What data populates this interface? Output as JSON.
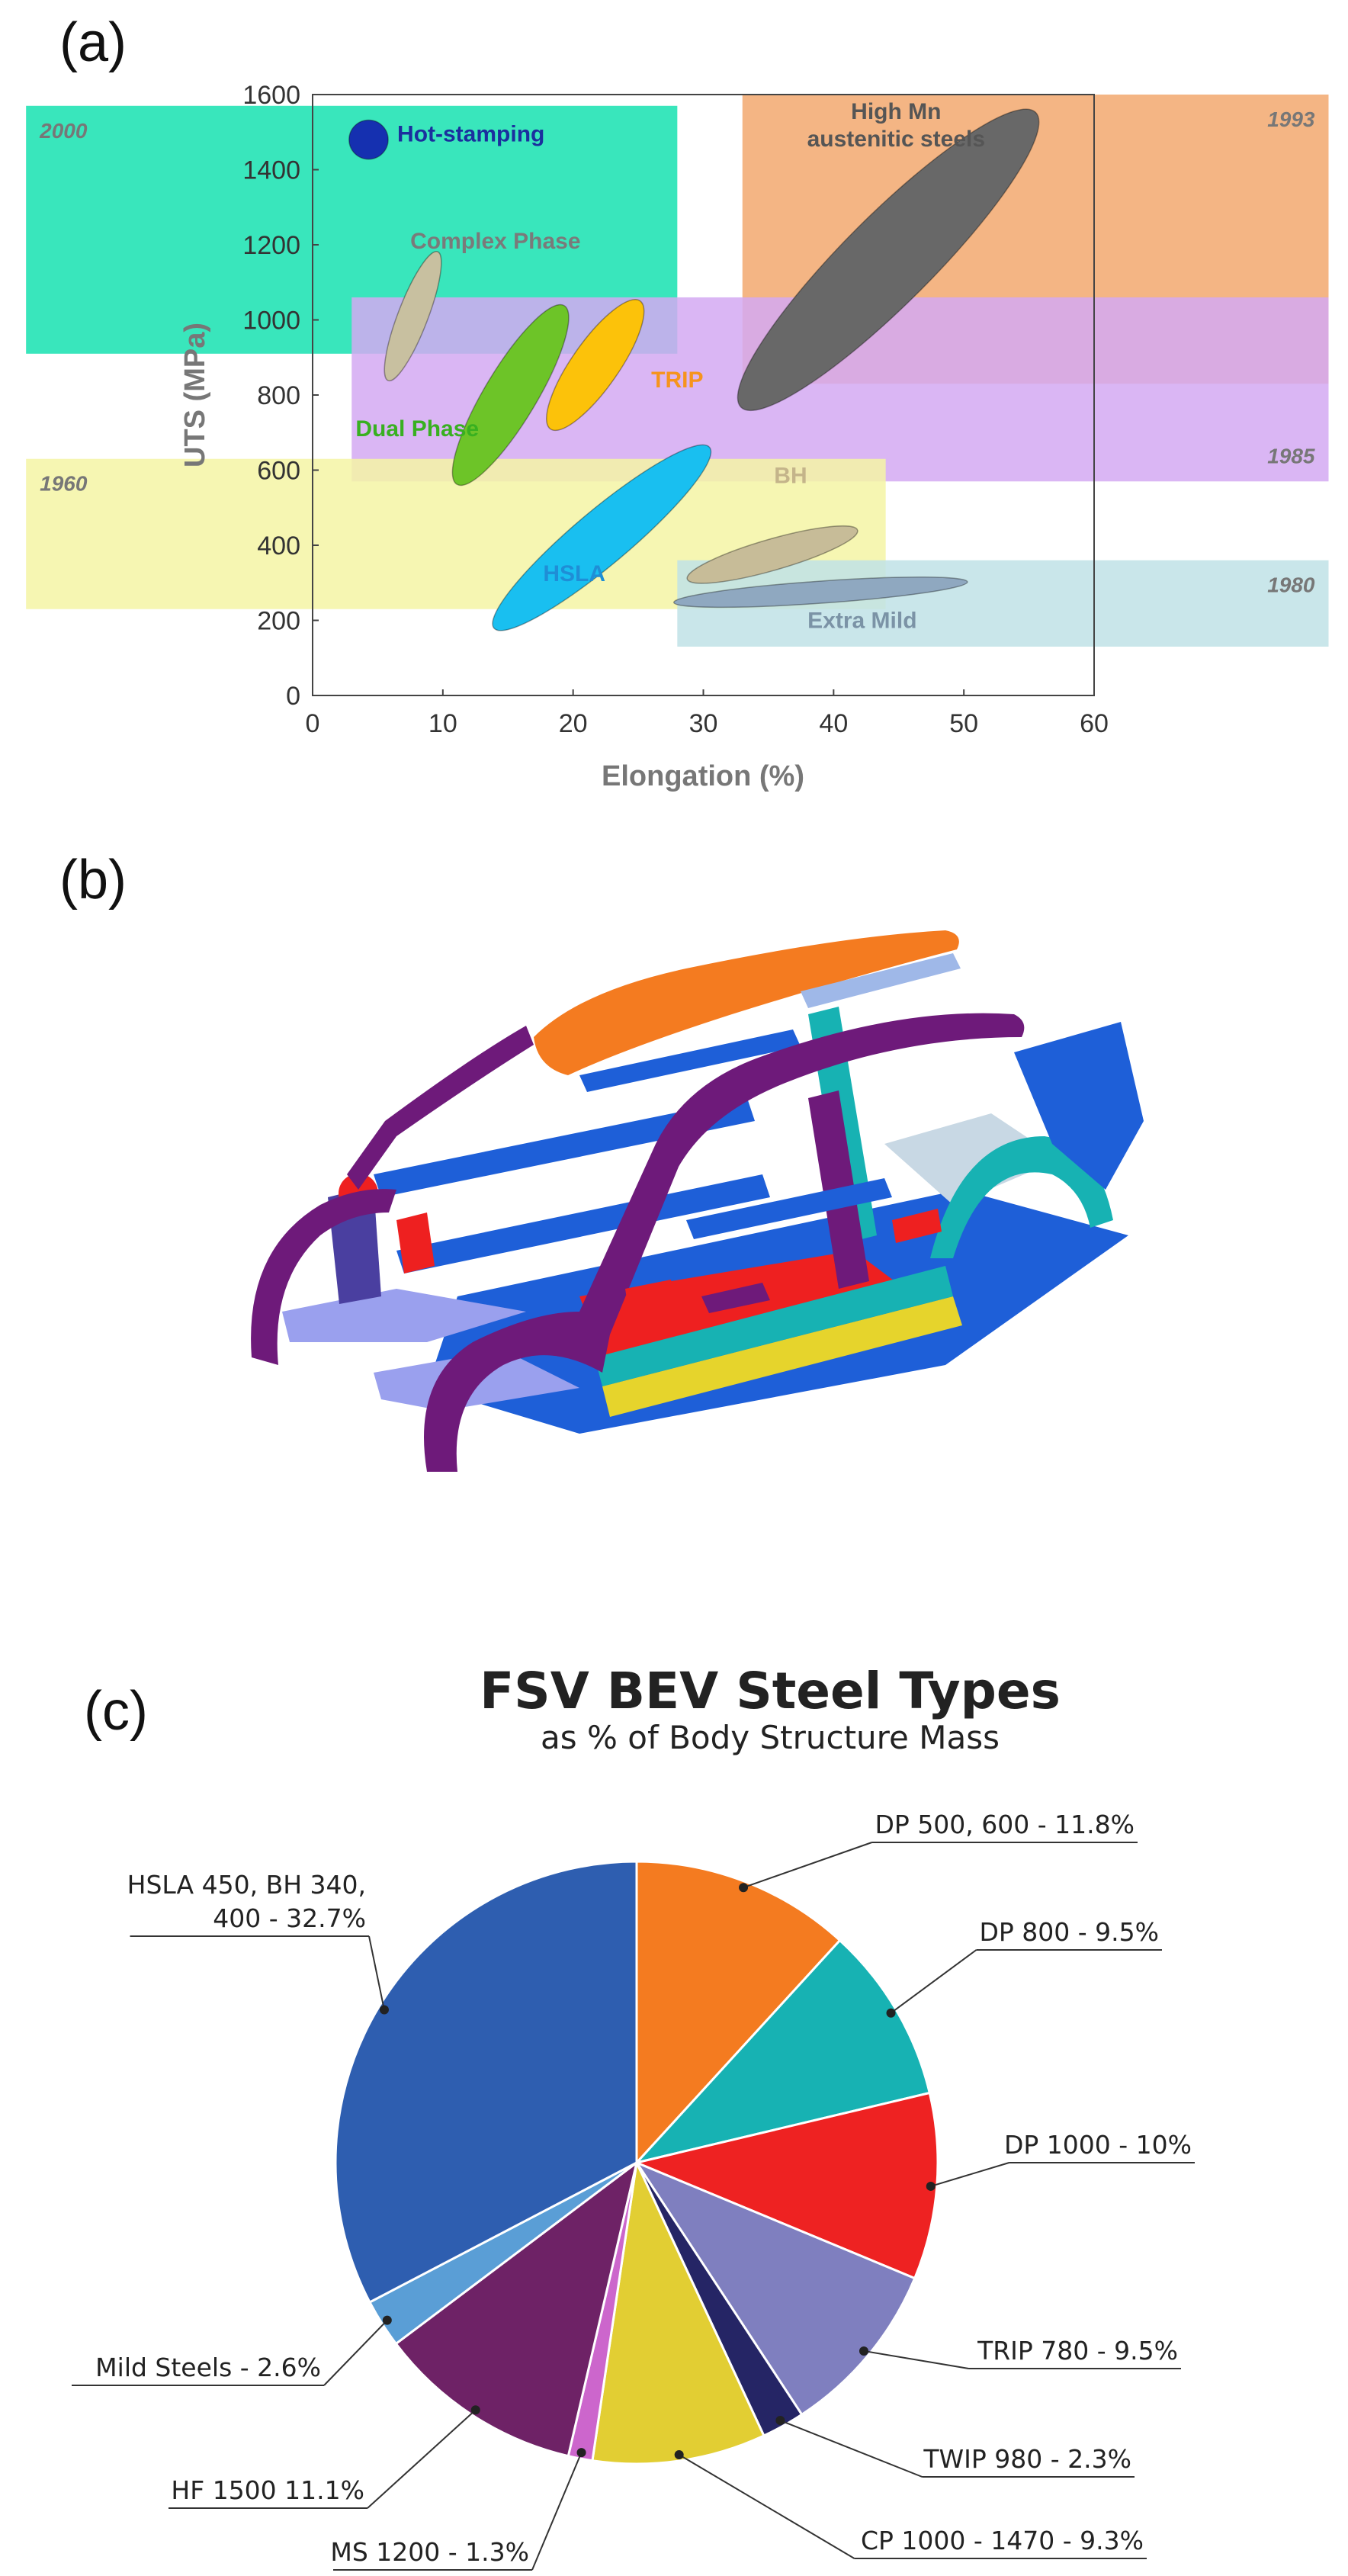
{
  "panels": {
    "a": "(a)",
    "b": "(b)",
    "c": "(c)"
  },
  "chart_data": [
    {
      "type": "scatter",
      "xlabel": "Elongation (%)",
      "ylabel": "UTS (MPa)",
      "xlim": [
        0,
        60
      ],
      "ylim": [
        0,
        1600
      ],
      "x_ticks": [
        "0",
        "10",
        "20",
        "30",
        "40",
        "50",
        "60"
      ],
      "y_ticks": [
        "0",
        "200",
        "400",
        "600",
        "800",
        "1000",
        "1200",
        "1400",
        "1600"
      ],
      "generations": [
        {
          "label": "2000",
          "color": "#16e2b0",
          "x": [
            -22,
            28
          ],
          "y": [
            910,
            1570
          ]
        },
        {
          "label": "1993",
          "color": "#f2a86e",
          "x": [
            33,
            78
          ],
          "y": [
            830,
            1600
          ]
        },
        {
          "label": "1985",
          "color": "#d4a9f2",
          "x": [
            3,
            78
          ],
          "y": [
            570,
            1060
          ]
        },
        {
          "label": "1960",
          "color": "#f4f4a4",
          "x": [
            -22,
            44
          ],
          "y": [
            230,
            630
          ]
        },
        {
          "label": "1980",
          "color": "#bfe2e6",
          "x": [
            28,
            78
          ],
          "y": [
            130,
            360
          ]
        }
      ],
      "steels": [
        {
          "name": "Hot-stamping",
          "color": "#1530b0",
          "label_color": "#1b2f9e",
          "cx": 4.3,
          "cy": 1480,
          "major": 1.5,
          "minor": 1.5,
          "angle_deg": 0
        },
        {
          "name": "Complex Phase",
          "color": "#c8c0a0",
          "label_color": "#7a7a7a",
          "cx": 7.7,
          "cy": 1010,
          "major": 5.3,
          "minor": 1.15,
          "angle_deg": 69
        },
        {
          "name": "Dual Phase",
          "color": "#6dc428",
          "label_color": "#38b020",
          "cx": 15.2,
          "cy": 800,
          "major": 8.0,
          "minor": 2.0,
          "angle_deg": 59
        },
        {
          "name": "TRIP",
          "color": "#fcc20a",
          "label_color": "#f6941c",
          "cx": 21.7,
          "cy": 880,
          "major": 6.0,
          "minor": 1.8,
          "angle_deg": 55
        },
        {
          "name": "High Mn\naustenitic steels",
          "color": "#686868",
          "label_color": "#555555",
          "cx": 44.2,
          "cy": 1160,
          "major": 16.0,
          "minor": 3.4,
          "angle_deg": 45
        },
        {
          "name": "HSLA",
          "color": "#19bff0",
          "label_color": "#1f8ed6",
          "cx": 22.2,
          "cy": 420,
          "major": 10.8,
          "minor": 2.1,
          "angle_deg": 40
        },
        {
          "name": "BH",
          "color": "#c7bc98",
          "label_color": "#c4b48a",
          "cx": 35.3,
          "cy": 375,
          "major": 6.8,
          "minor": 1.2,
          "angle_deg": 16
        },
        {
          "name": "Extra Mild",
          "color": "#8fa8c0",
          "label_color": "#7b93a6",
          "cx": 39.0,
          "cy": 275,
          "major": 11.3,
          "minor": 0.85,
          "angle_deg": 4
        }
      ]
    },
    {
      "type": "pie",
      "title": "FSV BEV Steel Types",
      "subtitle": "as % of Body Structure Mass",
      "slices": [
        {
          "label": "DP 500, 600 - 11.8%",
          "value": 11.8,
          "color": "#f47b20"
        },
        {
          "label": "DP 800 - 9.5%",
          "value": 9.5,
          "color": "#17b2b3"
        },
        {
          "label": "DP 1000 - 10%",
          "value": 10.0,
          "color": "#ee2222"
        },
        {
          "label": "TRIP 780 - 9.5%",
          "value": 9.5,
          "color": "#7f7fbf"
        },
        {
          "label": "TWIP 980 - 2.3%",
          "value": 2.3,
          "color": "#252565"
        },
        {
          "label": "CP 1000 - 1470 - 9.3%",
          "value": 9.3,
          "color": "#e2ce33"
        },
        {
          "label": "MS 1200 - 1.3%",
          "value": 1.3,
          "color": "#cc66cc"
        },
        {
          "label": "HF 1500  11.1%",
          "value": 11.1,
          "color": "#6e2266"
        },
        {
          "label": "Mild Steels - 2.6%",
          "value": 2.6,
          "color": "#5a9ed6"
        },
        {
          "label": "HSLA 450, BH 340,\n400 - 32.7%",
          "value": 32.7,
          "color": "#2e5eb0"
        }
      ]
    }
  ],
  "car_colors": {
    "roof": "#f47b20",
    "pillars": "#6e1a7a",
    "frame": "#1e5fd8",
    "floor": "#1e5fd8",
    "teal_parts": "#17b2b3",
    "red_parts": "#ee2020",
    "yellow_parts": "#e6d42c",
    "lavender_parts": "#9aa0ee"
  }
}
